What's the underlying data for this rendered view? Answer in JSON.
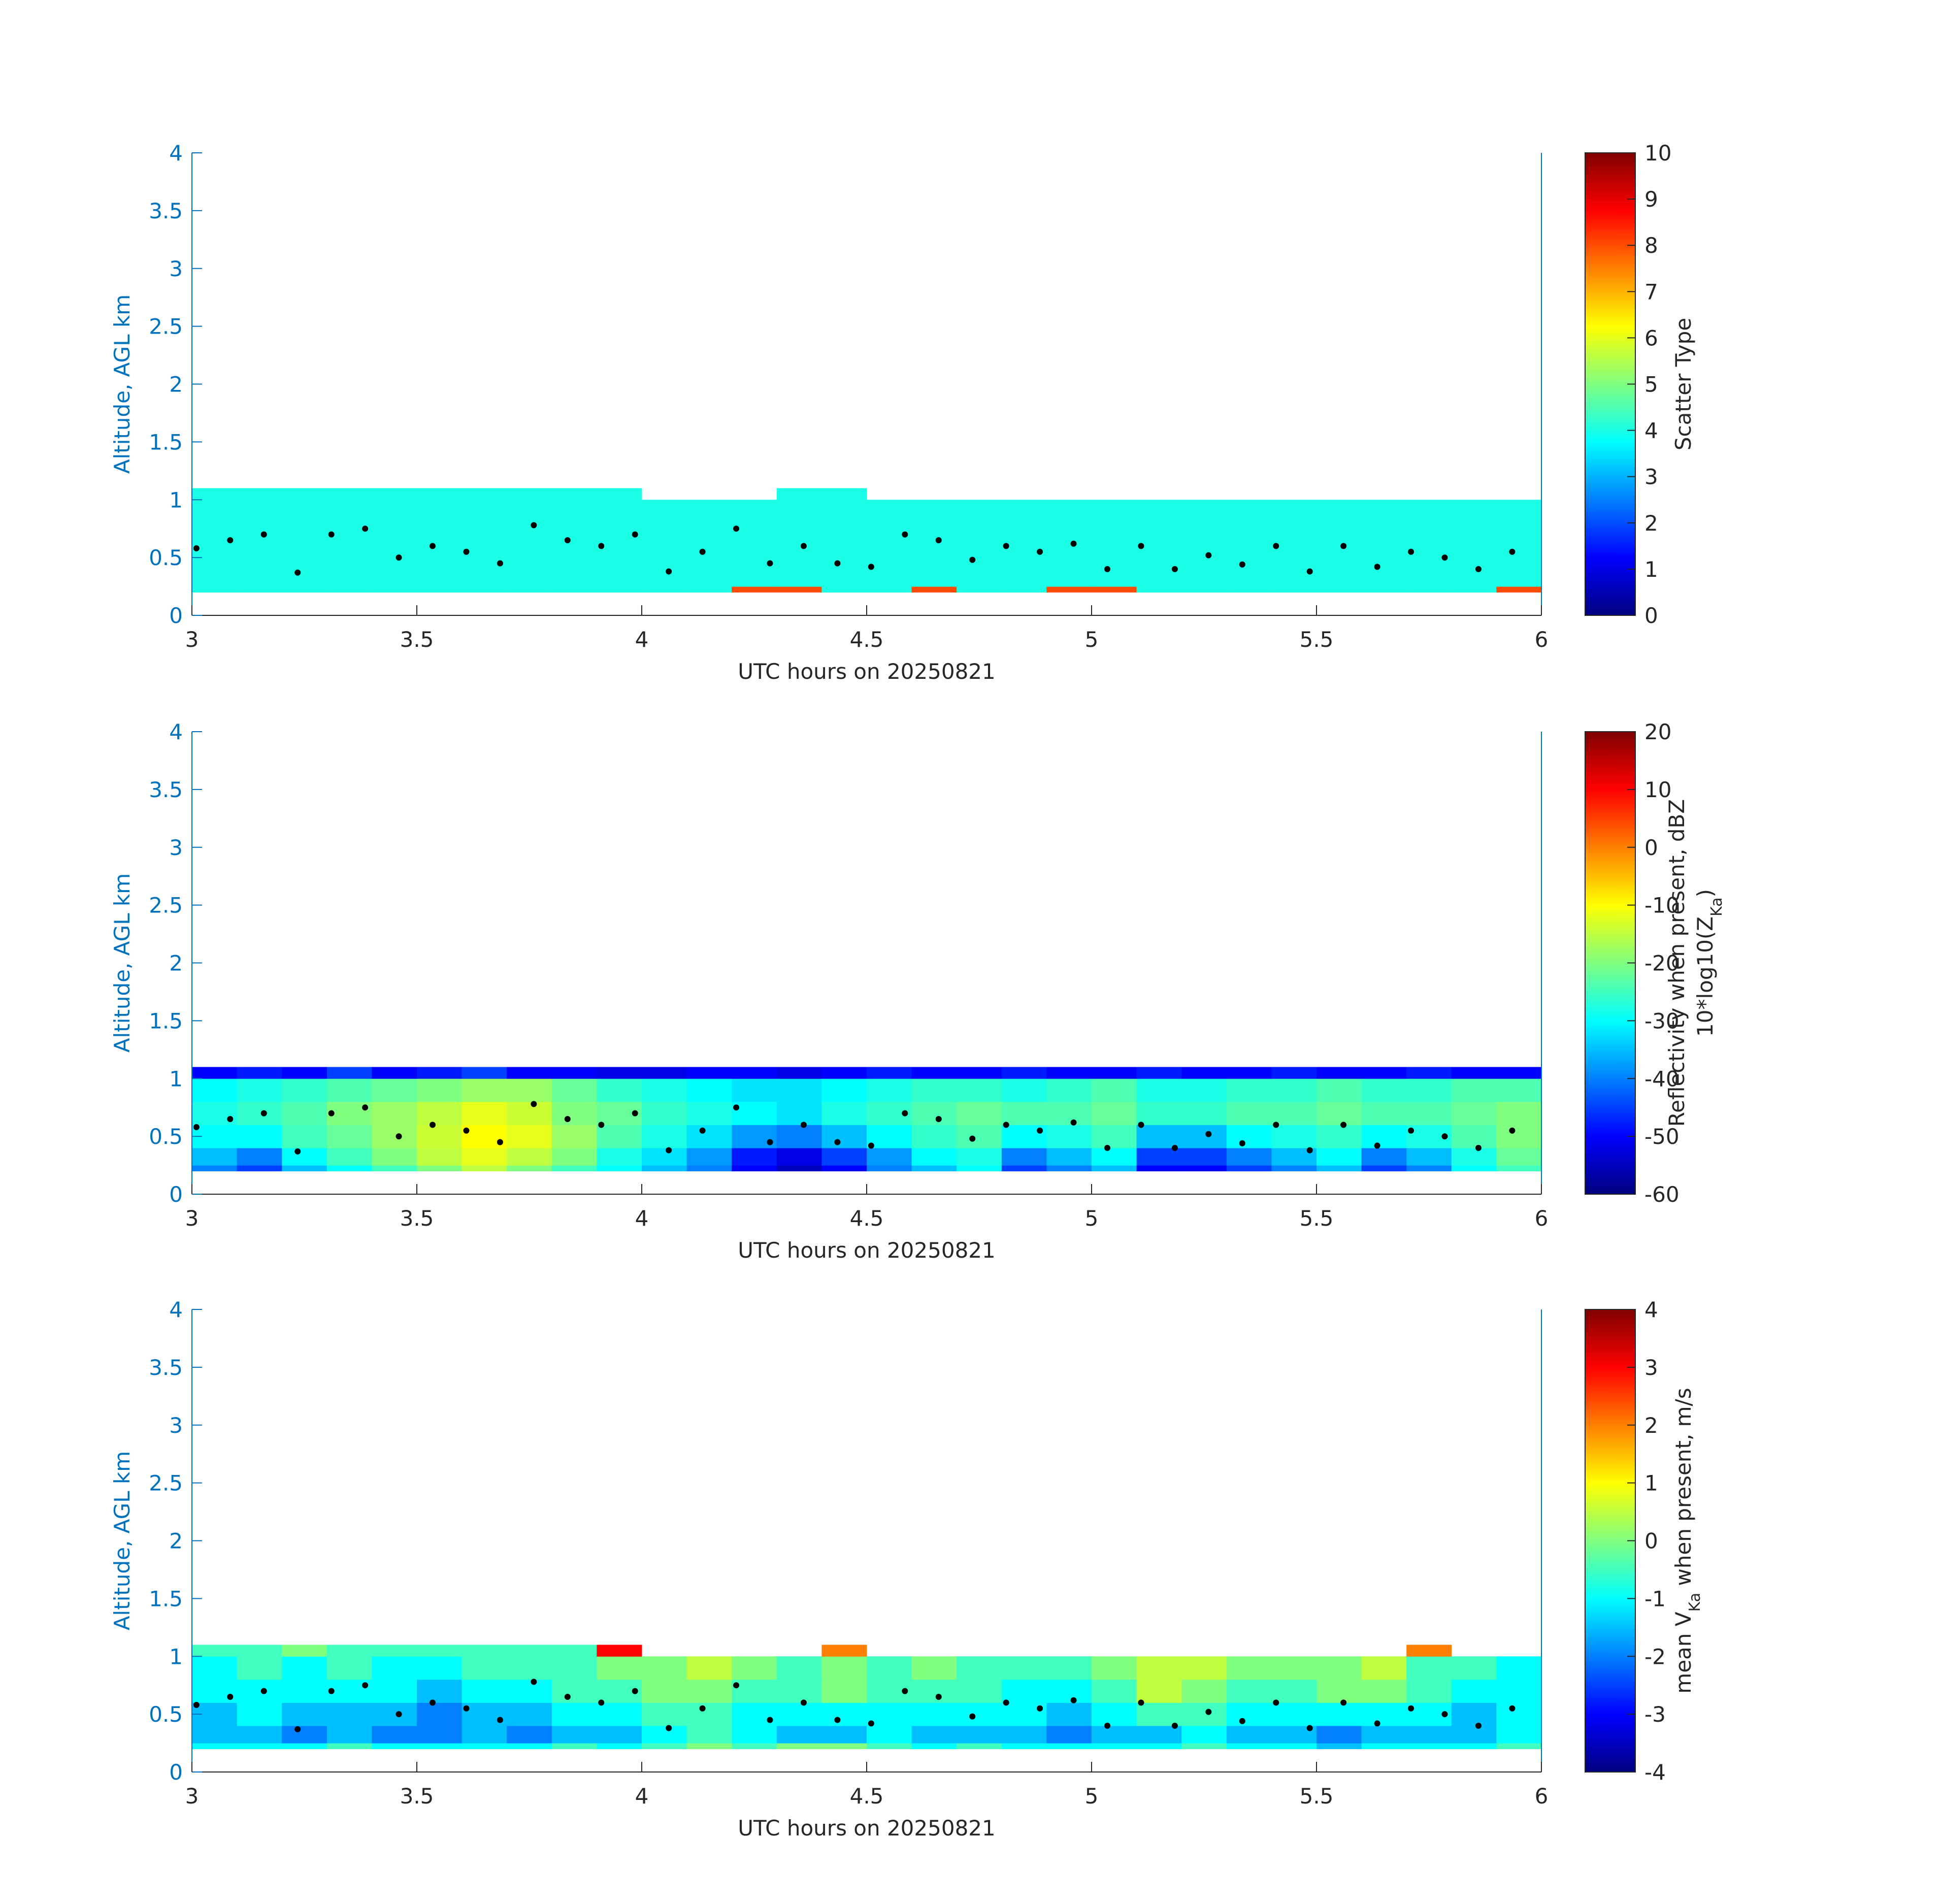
{
  "chart_data": [
    {
      "type": "heatmap",
      "xlabel": "UTC hours on 20250821",
      "ylabel": "Altitude, AGL km",
      "xlim": [
        3,
        6
      ],
      "ylim": [
        0,
        4
      ],
      "xticks": [
        3,
        3.5,
        4,
        4.5,
        5,
        5.5,
        6
      ],
      "yticks": [
        0,
        0.5,
        1,
        1.5,
        2,
        2.5,
        3,
        3.5,
        4
      ],
      "clim": [
        0,
        10
      ],
      "cticks": [
        0,
        1,
        2,
        3,
        4,
        5,
        6,
        7,
        8,
        9,
        10
      ],
      "colormap": "jet",
      "colorbar_label": [
        [
          {
            "text": "Scatter Type"
          }
        ]
      ],
      "x_edges": [
        3,
        3.1,
        3.2,
        3.3,
        3.4,
        3.5,
        3.6,
        3.7,
        3.8,
        3.9,
        4,
        4.1,
        4.2,
        4.3,
        4.4,
        4.5,
        4.6,
        4.7,
        4.8,
        4.9,
        5,
        5.1,
        5.2,
        5.3,
        5.4,
        5.5,
        5.6,
        5.7,
        5.8,
        5.9,
        6
      ],
      "y_edges": [
        0.2,
        0.25,
        0.4,
        0.6,
        0.8,
        1,
        1.1
      ],
      "z": [
        [
          4,
          4,
          4,
          4,
          4,
          4,
          4,
          4,
          4,
          4,
          4,
          4,
          8,
          8,
          4,
          4,
          8,
          4,
          4,
          8,
          8,
          4,
          4,
          4,
          4,
          4,
          4,
          4,
          4,
          8
        ],
        [
          4,
          4,
          4,
          4,
          4,
          4,
          4,
          4,
          4,
          4,
          4,
          4,
          4,
          4,
          4,
          4,
          4,
          4,
          4,
          4,
          4,
          4,
          4,
          4,
          4,
          4,
          4,
          4,
          4,
          4
        ],
        [
          4,
          4,
          4,
          4,
          4,
          4,
          4,
          4,
          4,
          4,
          4,
          4,
          4,
          4,
          4,
          4,
          4,
          4,
          4,
          4,
          4,
          4,
          4,
          4,
          4,
          4,
          4,
          4,
          4,
          4
        ],
        [
          4,
          4,
          4,
          4,
          4,
          4,
          4,
          4,
          4,
          4,
          4,
          4,
          4,
          4,
          4,
          4,
          4,
          4,
          4,
          4,
          4,
          4,
          4,
          4,
          4,
          4,
          4,
          4,
          4,
          4
        ],
        [
          4,
          4,
          4,
          4,
          4,
          4,
          4,
          4,
          4,
          4,
          4,
          4,
          4,
          4,
          4,
          4,
          4,
          4,
          4,
          4,
          4,
          4,
          4,
          4,
          4,
          4,
          4,
          4,
          4,
          4
        ],
        [
          4,
          4,
          4,
          4,
          4,
          4,
          4,
          4,
          4,
          4,
          null,
          null,
          null,
          4,
          4,
          null,
          null,
          null,
          null,
          null,
          null,
          null,
          null,
          null,
          null,
          null,
          null,
          null,
          null,
          null
        ]
      ],
      "points": {
        "color": "#000000",
        "x": [
          3.01,
          3.085,
          3.16,
          3.235,
          3.31,
          3.385,
          3.46,
          3.535,
          3.61,
          3.685,
          3.76,
          3.835,
          3.91,
          3.985,
          4.06,
          4.135,
          4.21,
          4.285,
          4.36,
          4.435,
          4.51,
          4.585,
          4.66,
          4.735,
          4.81,
          4.885,
          4.96,
          5.035,
          5.11,
          5.185,
          5.26,
          5.335,
          5.41,
          5.485,
          5.56,
          5.635,
          5.71,
          5.785,
          5.86,
          5.935
        ],
        "y": [
          0.58,
          0.65,
          0.7,
          0.37,
          0.7,
          0.75,
          0.5,
          0.6,
          0.55,
          0.45,
          0.78,
          0.65,
          0.6,
          0.7,
          0.38,
          0.55,
          0.75,
          0.45,
          0.6,
          0.45,
          0.42,
          0.7,
          0.65,
          0.48,
          0.6,
          0.55,
          0.62,
          0.4,
          0.6,
          0.4,
          0.52,
          0.44,
          0.6,
          0.38,
          0.6,
          0.42,
          0.55,
          0.5,
          0.4,
          0.55
        ]
      }
    },
    {
      "type": "heatmap",
      "xlabel": "UTC hours on 20250821",
      "ylabel": "Altitude, AGL km",
      "xlim": [
        3,
        6
      ],
      "ylim": [
        0,
        4
      ],
      "xticks": [
        3,
        3.5,
        4,
        4.5,
        5,
        5.5,
        6
      ],
      "yticks": [
        0,
        0.5,
        1,
        1.5,
        2,
        2.5,
        3,
        3.5,
        4
      ],
      "clim": [
        -60,
        20
      ],
      "cticks": [
        -60,
        -50,
        -40,
        -30,
        -20,
        -10,
        0,
        10,
        20
      ],
      "colormap": "jet",
      "colorbar_label": [
        [
          {
            "text": "Reflectivity when present, dBZ"
          }
        ],
        [
          {
            "text": "10*log10(Z"
          },
          {
            "text": "Ka",
            "sub": true
          },
          {
            "text": ")"
          }
        ]
      ],
      "x_edges": [
        3,
        3.1,
        3.2,
        3.3,
        3.4,
        3.5,
        3.6,
        3.7,
        3.8,
        3.9,
        4,
        4.1,
        4.2,
        4.3,
        4.4,
        4.5,
        4.6,
        4.7,
        4.8,
        4.9,
        5,
        5.1,
        5.2,
        5.3,
        5.4,
        5.5,
        5.6,
        5.7,
        5.8,
        5.9,
        6
      ],
      "y_edges": [
        0.2,
        0.25,
        0.4,
        0.6,
        0.8,
        1,
        1.1
      ],
      "z": [
        [
          -40,
          -45,
          -35,
          -30,
          -25,
          -20,
          -15,
          -20,
          -25,
          -30,
          -35,
          -40,
          -50,
          -55,
          -50,
          -40,
          -35,
          -30,
          -45,
          -40,
          -35,
          -50,
          -50,
          -45,
          -40,
          -35,
          -45,
          -40,
          -30,
          -25
        ],
        [
          -35,
          -40,
          -30,
          -25,
          -20,
          -15,
          -12,
          -15,
          -20,
          -28,
          -32,
          -38,
          -48,
          -52,
          -45,
          -38,
          -30,
          -28,
          -40,
          -35,
          -30,
          -45,
          -45,
          -40,
          -35,
          -30,
          -40,
          -35,
          -28,
          -22
        ],
        [
          -30,
          -30,
          -25,
          -22,
          -18,
          -14,
          -10,
          -12,
          -18,
          -24,
          -28,
          -32,
          -38,
          -40,
          -35,
          -30,
          -26,
          -24,
          -30,
          -28,
          -25,
          -35,
          -35,
          -30,
          -28,
          -26,
          -30,
          -28,
          -24,
          -20
        ],
        [
          -28,
          -26,
          -24,
          -20,
          -18,
          -15,
          -12,
          -14,
          -20,
          -22,
          -26,
          -28,
          -30,
          -32,
          -28,
          -26,
          -24,
          -22,
          -24,
          -24,
          -22,
          -26,
          -26,
          -24,
          -24,
          -22,
          -24,
          -24,
          -22,
          -20
        ],
        [
          -30,
          -28,
          -26,
          -24,
          -22,
          -20,
          -18,
          -18,
          -22,
          -26,
          -28,
          -30,
          -32,
          -32,
          -30,
          -28,
          -26,
          -26,
          -28,
          -26,
          -24,
          -28,
          -28,
          -26,
          -26,
          -24,
          -26,
          -26,
          -24,
          -24
        ],
        [
          -50,
          -48,
          -50,
          -45,
          -50,
          -48,
          -45,
          -50,
          -50,
          -52,
          -52,
          -50,
          -50,
          -52,
          -50,
          -48,
          -50,
          -50,
          -48,
          -50,
          -50,
          -48,
          -50,
          -50,
          -48,
          -50,
          -50,
          -48,
          -50,
          -50
        ]
      ],
      "points": {
        "color": "#000000",
        "x": [
          3.01,
          3.085,
          3.16,
          3.235,
          3.31,
          3.385,
          3.46,
          3.535,
          3.61,
          3.685,
          3.76,
          3.835,
          3.91,
          3.985,
          4.06,
          4.135,
          4.21,
          4.285,
          4.36,
          4.435,
          4.51,
          4.585,
          4.66,
          4.735,
          4.81,
          4.885,
          4.96,
          5.035,
          5.11,
          5.185,
          5.26,
          5.335,
          5.41,
          5.485,
          5.56,
          5.635,
          5.71,
          5.785,
          5.86,
          5.935
        ],
        "y": [
          0.58,
          0.65,
          0.7,
          0.37,
          0.7,
          0.75,
          0.5,
          0.6,
          0.55,
          0.45,
          0.78,
          0.65,
          0.6,
          0.7,
          0.38,
          0.55,
          0.75,
          0.45,
          0.6,
          0.45,
          0.42,
          0.7,
          0.65,
          0.48,
          0.6,
          0.55,
          0.62,
          0.4,
          0.6,
          0.4,
          0.52,
          0.44,
          0.6,
          0.38,
          0.6,
          0.42,
          0.55,
          0.5,
          0.4,
          0.55
        ]
      }
    },
    {
      "type": "heatmap",
      "xlabel": "UTC hours on 20250821",
      "ylabel": "Altitude, AGL km",
      "xlim": [
        3,
        6
      ],
      "ylim": [
        0,
        4
      ],
      "xticks": [
        3,
        3.5,
        4,
        4.5,
        5,
        5.5,
        6
      ],
      "yticks": [
        0,
        0.5,
        1,
        1.5,
        2,
        2.5,
        3,
        3.5,
        4
      ],
      "clim": [
        -4,
        4
      ],
      "cticks": [
        -4,
        -3,
        -2,
        -1,
        0,
        1,
        2,
        3,
        4
      ],
      "colormap": "jet",
      "colorbar_label": [
        [
          {
            "text": "mean V"
          },
          {
            "text": "Ka",
            "sub": true
          },
          {
            "text": " when present, m/s"
          }
        ]
      ],
      "x_edges": [
        3,
        3.1,
        3.2,
        3.3,
        3.4,
        3.5,
        3.6,
        3.7,
        3.8,
        3.9,
        4,
        4.1,
        4.2,
        4.3,
        4.4,
        4.5,
        4.6,
        4.7,
        4.8,
        4.9,
        5,
        5.1,
        5.2,
        5.3,
        5.4,
        5.5,
        5.6,
        5.7,
        5.8,
        5.9,
        6
      ],
      "y_edges": [
        0.2,
        0.25,
        0.4,
        0.6,
        0.8,
        1,
        1.1
      ],
      "z": [
        [
          -1,
          -1,
          -1,
          -0.5,
          -1,
          -1,
          -1,
          -1,
          -0.5,
          -1,
          -0.5,
          0,
          -0.5,
          0,
          0,
          -0.5,
          -1,
          -0.5,
          -1,
          -1,
          -1,
          -1,
          -0.5,
          -1,
          -1,
          -1.5,
          -1,
          -1,
          -1,
          -0.5
        ],
        [
          -1.5,
          -1.5,
          -2,
          -1.5,
          -2,
          -2,
          -1.5,
          -2,
          -1.5,
          -1.5,
          -1,
          -0.5,
          -1,
          -1.5,
          -1.5,
          -1,
          -1.5,
          -1.5,
          -1.5,
          -2,
          -1.5,
          -1.5,
          -1,
          -1.5,
          -1.5,
          -2,
          -1.5,
          -1.5,
          -1.5,
          -1
        ],
        [
          -1.5,
          -1,
          -1.5,
          -1.5,
          -1.5,
          -2,
          -1.5,
          -1.5,
          -1,
          -1,
          -0.5,
          -0.5,
          -1,
          -1,
          -1,
          -1,
          -1,
          -1,
          -1,
          -1.5,
          -1,
          -0.5,
          -0.5,
          -1,
          -1,
          -1,
          -1,
          -1,
          -1.5,
          -1
        ],
        [
          -1,
          -1,
          -1,
          -1,
          -1,
          -1.5,
          -1,
          -1,
          -0.5,
          -0.5,
          0,
          0,
          -0.5,
          -0.5,
          0,
          -0.5,
          -0.5,
          -0.5,
          -1,
          -1,
          -0.5,
          0.5,
          0,
          -0.5,
          -0.5,
          0,
          0,
          -0.5,
          -1,
          -1
        ],
        [
          -1,
          -0.5,
          -1,
          -0.5,
          -1,
          -1,
          -0.5,
          -0.5,
          -0.5,
          0,
          0,
          0.5,
          0,
          -0.5,
          0,
          -0.5,
          0,
          -0.5,
          -0.5,
          -0.5,
          0,
          0.5,
          0.5,
          0,
          0,
          0,
          0.5,
          -0.5,
          -0.5,
          -1
        ],
        [
          -0.5,
          -0.5,
          0,
          -0.5,
          -0.5,
          -0.5,
          -0.5,
          -0.5,
          -0.5,
          3,
          null,
          null,
          null,
          null,
          2,
          null,
          null,
          null,
          null,
          null,
          null,
          null,
          null,
          null,
          null,
          null,
          null,
          2,
          null,
          null
        ]
      ],
      "points": {
        "color": "#000000",
        "x": [
          3.01,
          3.085,
          3.16,
          3.235,
          3.31,
          3.385,
          3.46,
          3.535,
          3.61,
          3.685,
          3.76,
          3.835,
          3.91,
          3.985,
          4.06,
          4.135,
          4.21,
          4.285,
          4.36,
          4.435,
          4.51,
          4.585,
          4.66,
          4.735,
          4.81,
          4.885,
          4.96,
          5.035,
          5.11,
          5.185,
          5.26,
          5.335,
          5.41,
          5.485,
          5.56,
          5.635,
          5.71,
          5.785,
          5.86,
          5.935
        ],
        "y": [
          0.58,
          0.65,
          0.7,
          0.37,
          0.7,
          0.75,
          0.5,
          0.6,
          0.55,
          0.45,
          0.78,
          0.65,
          0.6,
          0.7,
          0.38,
          0.55,
          0.75,
          0.45,
          0.6,
          0.45,
          0.42,
          0.7,
          0.65,
          0.48,
          0.6,
          0.55,
          0.62,
          0.4,
          0.6,
          0.4,
          0.52,
          0.44,
          0.6,
          0.38,
          0.6,
          0.42,
          0.55,
          0.5,
          0.4,
          0.55
        ]
      }
    }
  ]
}
